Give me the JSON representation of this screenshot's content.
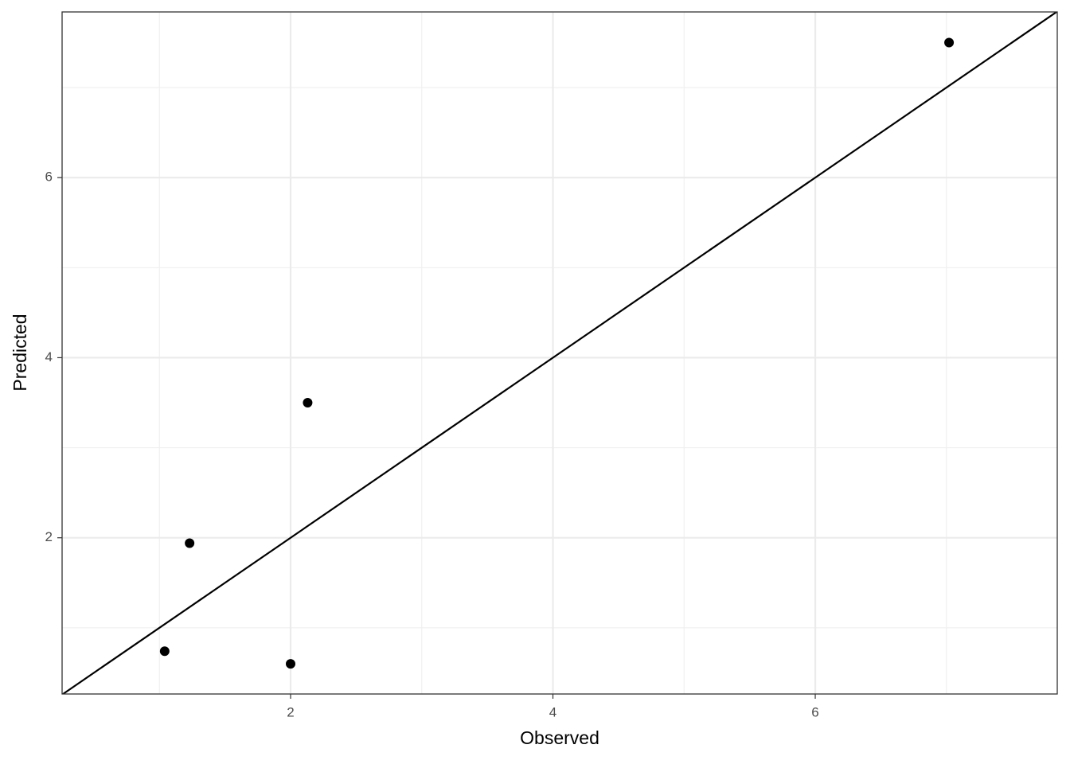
{
  "chart_data": {
    "type": "scatter",
    "x_label": "Observed",
    "y_label": "Predicted",
    "x": [
      1.04,
      1.23,
      2.0,
      2.13,
      7.02
    ],
    "values": [
      0.74,
      1.94,
      0.6,
      3.5,
      7.5
    ],
    "color": "#000000",
    "xlim": [
      0.258,
      7.845
    ],
    "ylim": [
      0.265,
      7.84
    ],
    "xticks": [
      2,
      4,
      6
    ],
    "yticks": [
      2,
      4,
      6
    ],
    "xminor": [
      1,
      3,
      5,
      7
    ],
    "yminor": [
      1,
      3,
      5,
      7
    ],
    "grid": true,
    "reference_line": {
      "slope": 1,
      "intercept": 0
    }
  }
}
